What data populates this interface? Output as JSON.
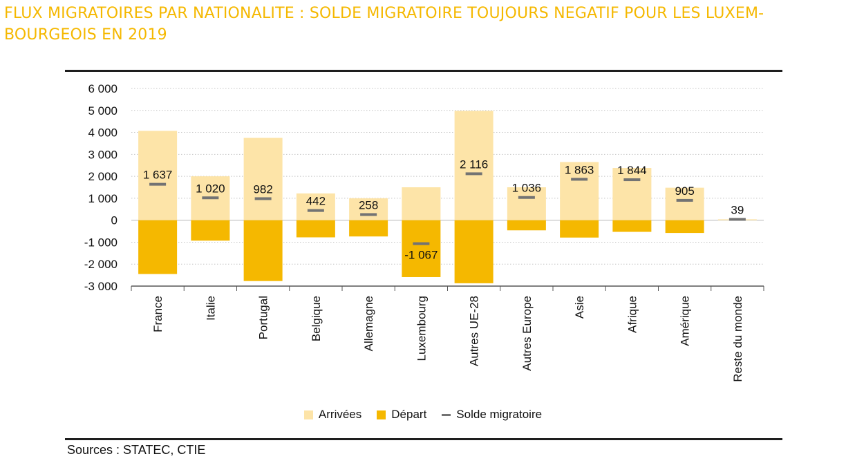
{
  "header": {
    "title_line1": "FLUX MIGRATOIRES PAR NATIONALITE : SOLDE MIGRATOIRE TOUJOURS NEGATIF POUR LES LUXEM-",
    "title_line2": "BOURGEOIS EN 2019"
  },
  "chart_data": {
    "type": "bar",
    "title": "FLUX MIGRATOIRES PAR NATIONALITE : SOLDE MIGRATOIRE TOUJOURS NEGATIF POUR LES LUXEMBOURGEOIS EN 2019",
    "categories": [
      "France",
      "Italie",
      "Portugal",
      "Belgique",
      "Allemagne",
      "Luxembourg",
      "Autres UE-28",
      "Autres Europe",
      "Asie",
      "Afrique",
      "Amérique",
      "Reste du monde"
    ],
    "series": [
      {
        "name": "Arrivées",
        "type": "bar",
        "color": "#fde4a8",
        "values": [
          4070,
          2000,
          3750,
          1220,
          1000,
          1500,
          4980,
          1500,
          2650,
          2380,
          1480,
          40
        ]
      },
      {
        "name": "Départ",
        "type": "bar",
        "color": "#f5b800",
        "values": [
          -2450,
          -930,
          -2770,
          -780,
          -740,
          -2590,
          -2870,
          -460,
          -790,
          -530,
          -580,
          -1
        ]
      },
      {
        "name": "Solde migratoire",
        "type": "marker",
        "color": "#737373",
        "values": [
          1637,
          1020,
          982,
          442,
          258,
          -1067,
          2116,
          1036,
          1863,
          1844,
          905,
          39
        ]
      }
    ],
    "value_labels": [
      "1 637",
      "1 020",
      "982",
      "442",
      "258",
      "-1 067",
      "2 116",
      "1 036",
      "1 863",
      "1 844",
      "905",
      "39"
    ],
    "y_ticks": [
      6000,
      5000,
      4000,
      3000,
      2000,
      1000,
      0,
      -1000,
      -2000,
      -3000
    ],
    "y_tick_labels": [
      "6 000",
      "5 000",
      "4 000",
      "3 000",
      "2 000",
      "1 000",
      "0",
      "-1 000",
      "-2 000",
      "-3 000"
    ],
    "ylim": [
      -3000,
      6000
    ],
    "xlabel": "",
    "ylabel": "",
    "grid": true,
    "legend_position": "bottom"
  },
  "legend": {
    "arrivals": "Arrivées",
    "departures": "Départ",
    "balance": "Solde migratoire"
  },
  "footer": {
    "source": "Sources : STATEC, CTIE"
  },
  "colors": {
    "title": "#f5b800",
    "arrivals": "#fde4a8",
    "departures": "#f5b800",
    "balance": "#737373"
  }
}
